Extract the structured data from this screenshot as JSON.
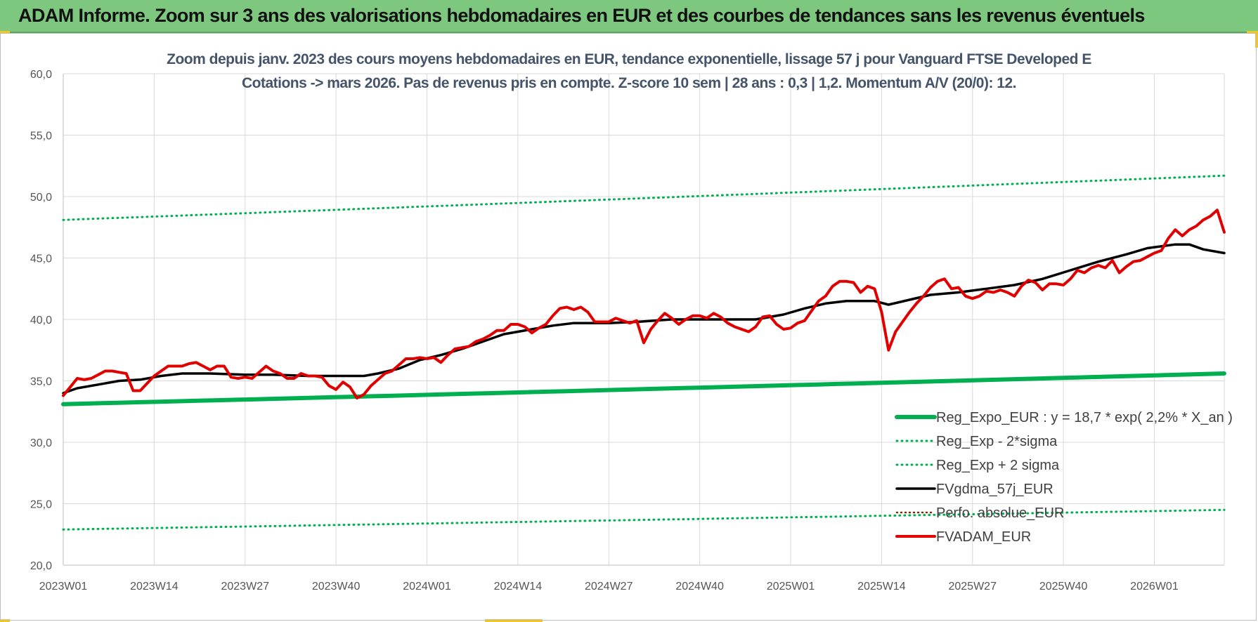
{
  "header": {
    "title": "ADAM Informe. Zoom sur 3 ans des valorisations hebdomadaires en EUR et des courbes de tendances sans les revenus éventuels"
  },
  "colors": {
    "banner": "#7dc77f",
    "accent": "#f2c81e",
    "reg_expo": "#00b050",
    "sigma": "#00b050",
    "gdma": "#000000",
    "perfo": "#7f2a00",
    "adam": "#e00000"
  },
  "chart_data": {
    "type": "line",
    "title": "Zoom depuis janv. 2023 des cours moyens hebdomadaires en EUR, tendance exponentielle, lissage 57 j pour Vanguard FTSE Developed E",
    "subtitle": "Cotations -> mars 2026. Pas de revenus pris en compte. Z-score 10 sem | 28 ans : 0,3 | 1,2. Momentum A/V (20/0): 12.",
    "xlabel": "",
    "ylabel": "",
    "ylim": [
      20,
      60
    ],
    "yticks": [
      "20,0",
      "25,0",
      "30,0",
      "35,0",
      "40,0",
      "45,0",
      "50,0",
      "55,0",
      "60,0"
    ],
    "x_tick_labels": [
      "2023W01",
      "2023W14",
      "2023W27",
      "2023W40",
      "2024W01",
      "2024W14",
      "2024W27",
      "2024W40",
      "2025W01",
      "2025W14",
      "2025W27",
      "2025W40",
      "2026W01"
    ],
    "x_start": "2023W01",
    "x_end": "2026W11",
    "grid": true,
    "legend_position": "bottom-right",
    "legend": [
      "Reg_Expo_EUR : y = 18,7 * exp( 2,2% *  X_an )",
      "Reg_Exp - 2*sigma",
      "Reg_Exp + 2 sigma",
      "FVgdma_57j_EUR",
      "Perfo. absolue_EUR",
      "FVADAM_EUR"
    ],
    "series": [
      {
        "name": "Reg_Expo_EUR : y = 18,7 * exp( 2,2% *  X_an )",
        "style": "solid-thick",
        "start": 33.1,
        "end": 35.6
      },
      {
        "name": "Reg_Exp - 2*sigma",
        "style": "dotted",
        "start": 22.9,
        "end": 24.5
      },
      {
        "name": "Reg_Exp + 2 sigma",
        "style": "dotted",
        "start": 48.1,
        "end": 51.7
      },
      {
        "name": "FVgdma_57j_EUR",
        "style": "solid",
        "points": [
          [
            "2023W01",
            34.0
          ],
          [
            "2023W03",
            34.4
          ],
          [
            "2023W06",
            34.7
          ],
          [
            "2023W09",
            35.0
          ],
          [
            "2023W12",
            35.1
          ],
          [
            "2023W15",
            35.4
          ],
          [
            "2023W18",
            35.6
          ],
          [
            "2023W22",
            35.6
          ],
          [
            "2023W27",
            35.5
          ],
          [
            "2023W31",
            35.5
          ],
          [
            "2023W36",
            35.4
          ],
          [
            "2023W40",
            35.4
          ],
          [
            "2023W44",
            35.4
          ],
          [
            "2023W46",
            35.6
          ],
          [
            "2023W49",
            36.0
          ],
          [
            "2023W52",
            36.7
          ],
          [
            "2024W03",
            37.1
          ],
          [
            "2024W06",
            37.6
          ],
          [
            "2024W09",
            38.2
          ],
          [
            "2024W12",
            38.8
          ],
          [
            "2024W16",
            39.2
          ],
          [
            "2024W19",
            39.5
          ],
          [
            "2024W22",
            39.7
          ],
          [
            "2024W27",
            39.7
          ],
          [
            "2024W31",
            39.8
          ],
          [
            "2024W36",
            40.0
          ],
          [
            "2024W40",
            40.0
          ],
          [
            "2024W44",
            40.0
          ],
          [
            "2024W48",
            40.0
          ],
          [
            "2024W52",
            40.4
          ],
          [
            "2025W03",
            40.9
          ],
          [
            "2025W06",
            41.3
          ],
          [
            "2025W09",
            41.5
          ],
          [
            "2025W13",
            41.5
          ],
          [
            "2025W15",
            41.2
          ],
          [
            "2025W18",
            41.6
          ],
          [
            "2025W21",
            42.0
          ],
          [
            "2025W25",
            42.2
          ],
          [
            "2025W29",
            42.5
          ],
          [
            "2025W33",
            42.8
          ],
          [
            "2025W37",
            43.3
          ],
          [
            "2025W41",
            44.0
          ],
          [
            "2025W45",
            44.7
          ],
          [
            "2025W49",
            45.3
          ],
          [
            "2025W52",
            45.8
          ],
          [
            "2026W04",
            46.1
          ],
          [
            "2026W06",
            46.1
          ],
          [
            "2026W08",
            45.7
          ],
          [
            "2026W11",
            45.4
          ]
        ]
      },
      {
        "name": "Perfo. absolue_EUR",
        "style": "dotted",
        "points": []
      },
      {
        "name": "FVADAM_EUR",
        "style": "solid-red",
        "points": [
          [
            "2023W01",
            33.8
          ],
          [
            "2023W02",
            34.5
          ],
          [
            "2023W03",
            35.2
          ],
          [
            "2023W04",
            35.1
          ],
          [
            "2023W05",
            35.2
          ],
          [
            "2023W06",
            35.5
          ],
          [
            "2023W07",
            35.8
          ],
          [
            "2023W08",
            35.8
          ],
          [
            "2023W09",
            35.7
          ],
          [
            "2023W10",
            35.6
          ],
          [
            "2023W11",
            34.2
          ],
          [
            "2023W12",
            34.2
          ],
          [
            "2023W13",
            34.8
          ],
          [
            "2023W14",
            35.4
          ],
          [
            "2023W15",
            35.8
          ],
          [
            "2023W16",
            36.2
          ],
          [
            "2023W17",
            36.2
          ],
          [
            "2023W18",
            36.2
          ],
          [
            "2023W19",
            36.4
          ],
          [
            "2023W20",
            36.5
          ],
          [
            "2023W21",
            36.2
          ],
          [
            "2023W22",
            35.9
          ],
          [
            "2023W23",
            36.2
          ],
          [
            "2023W24",
            36.2
          ],
          [
            "2023W25",
            35.3
          ],
          [
            "2023W26",
            35.2
          ],
          [
            "2023W27",
            35.3
          ],
          [
            "2023W28",
            35.2
          ],
          [
            "2023W29",
            35.7
          ],
          [
            "2023W30",
            36.2
          ],
          [
            "2023W31",
            35.8
          ],
          [
            "2023W32",
            35.6
          ],
          [
            "2023W33",
            35.2
          ],
          [
            "2023W34",
            35.2
          ],
          [
            "2023W35",
            35.6
          ],
          [
            "2023W36",
            35.4
          ],
          [
            "2023W37",
            35.4
          ],
          [
            "2023W38",
            35.3
          ],
          [
            "2023W39",
            34.6
          ],
          [
            "2023W40",
            34.3
          ],
          [
            "2023W41",
            34.9
          ],
          [
            "2023W42",
            34.5
          ],
          [
            "2023W43",
            33.6
          ],
          [
            "2023W44",
            33.9
          ],
          [
            "2023W45",
            34.6
          ],
          [
            "2023W46",
            35.1
          ],
          [
            "2023W47",
            35.6
          ],
          [
            "2023W48",
            35.8
          ],
          [
            "2023W49",
            36.3
          ],
          [
            "2023W50",
            36.8
          ],
          [
            "2023W51",
            36.8
          ],
          [
            "2023W52",
            36.9
          ],
          [
            "2024W01",
            36.8
          ],
          [
            "2024W02",
            36.9
          ],
          [
            "2024W03",
            36.5
          ],
          [
            "2024W04",
            37.1
          ],
          [
            "2024W05",
            37.6
          ],
          [
            "2024W06",
            37.7
          ],
          [
            "2024W07",
            37.8
          ],
          [
            "2024W08",
            38.2
          ],
          [
            "2024W09",
            38.4
          ],
          [
            "2024W10",
            38.7
          ],
          [
            "2024W11",
            39.1
          ],
          [
            "2024W12",
            39.1
          ],
          [
            "2024W13",
            39.6
          ],
          [
            "2024W14",
            39.6
          ],
          [
            "2024W15",
            39.4
          ],
          [
            "2024W16",
            38.9
          ],
          [
            "2024W17",
            39.3
          ],
          [
            "2024W18",
            39.6
          ],
          [
            "2024W19",
            40.3
          ],
          [
            "2024W20",
            40.9
          ],
          [
            "2024W21",
            41.0
          ],
          [
            "2024W22",
            40.8
          ],
          [
            "2024W23",
            41.0
          ],
          [
            "2024W24",
            40.6
          ],
          [
            "2024W25",
            39.8
          ],
          [
            "2024W26",
            39.8
          ],
          [
            "2024W27",
            39.8
          ],
          [
            "2024W28",
            40.1
          ],
          [
            "2024W29",
            39.9
          ],
          [
            "2024W30",
            39.7
          ],
          [
            "2024W31",
            39.9
          ],
          [
            "2024W32",
            38.1
          ],
          [
            "2024W33",
            39.2
          ],
          [
            "2024W34",
            39.9
          ],
          [
            "2024W35",
            40.5
          ],
          [
            "2024W36",
            40.1
          ],
          [
            "2024W37",
            39.6
          ],
          [
            "2024W38",
            40.0
          ],
          [
            "2024W39",
            40.3
          ],
          [
            "2024W40",
            40.3
          ],
          [
            "2024W41",
            40.1
          ],
          [
            "2024W42",
            40.5
          ],
          [
            "2024W43",
            40.2
          ],
          [
            "2024W44",
            39.7
          ],
          [
            "2024W45",
            39.4
          ],
          [
            "2024W46",
            39.2
          ],
          [
            "2024W47",
            39.0
          ],
          [
            "2024W48",
            39.4
          ],
          [
            "2024W49",
            40.2
          ],
          [
            "2024W50",
            40.3
          ],
          [
            "2024W51",
            39.6
          ],
          [
            "2024W52",
            39.2
          ],
          [
            "2025W01",
            39.3
          ],
          [
            "2025W02",
            39.7
          ],
          [
            "2025W03",
            39.9
          ],
          [
            "2025W04",
            40.7
          ],
          [
            "2025W05",
            41.5
          ],
          [
            "2025W06",
            41.9
          ],
          [
            "2025W07",
            42.7
          ],
          [
            "2025W08",
            43.1
          ],
          [
            "2025W09",
            43.1
          ],
          [
            "2025W10",
            43.0
          ],
          [
            "2025W11",
            42.2
          ],
          [
            "2025W12",
            42.7
          ],
          [
            "2025W13",
            42.5
          ],
          [
            "2025W14",
            40.6
          ],
          [
            "2025W15",
            37.5
          ],
          [
            "2025W16",
            39.0
          ],
          [
            "2025W17",
            39.8
          ],
          [
            "2025W18",
            40.6
          ],
          [
            "2025W19",
            41.3
          ],
          [
            "2025W20",
            41.9
          ],
          [
            "2025W21",
            42.6
          ],
          [
            "2025W22",
            43.1
          ],
          [
            "2025W23",
            43.3
          ],
          [
            "2025W24",
            42.5
          ],
          [
            "2025W25",
            42.6
          ],
          [
            "2025W26",
            41.9
          ],
          [
            "2025W27",
            41.7
          ],
          [
            "2025W28",
            41.9
          ],
          [
            "2025W29",
            42.3
          ],
          [
            "2025W30",
            42.2
          ],
          [
            "2025W31",
            42.4
          ],
          [
            "2025W32",
            42.2
          ],
          [
            "2025W33",
            41.9
          ],
          [
            "2025W34",
            42.7
          ],
          [
            "2025W35",
            43.2
          ],
          [
            "2025W36",
            43.0
          ],
          [
            "2025W37",
            42.4
          ],
          [
            "2025W38",
            42.9
          ],
          [
            "2025W39",
            42.9
          ],
          [
            "2025W40",
            42.8
          ],
          [
            "2025W41",
            43.3
          ],
          [
            "2025W42",
            44.0
          ],
          [
            "2025W43",
            43.8
          ],
          [
            "2025W44",
            44.2
          ],
          [
            "2025W45",
            44.4
          ],
          [
            "2025W46",
            44.2
          ],
          [
            "2025W47",
            44.8
          ],
          [
            "2025W48",
            43.8
          ],
          [
            "2025W49",
            44.3
          ],
          [
            "2025W50",
            44.7
          ],
          [
            "2025W51",
            44.8
          ],
          [
            "2025W52",
            45.1
          ],
          [
            "2026W01",
            45.4
          ],
          [
            "2026W02",
            45.6
          ],
          [
            "2026W03",
            46.6
          ],
          [
            "2026W04",
            47.3
          ],
          [
            "2026W05",
            46.8
          ],
          [
            "2026W06",
            47.3
          ],
          [
            "2026W07",
            47.6
          ],
          [
            "2026W08",
            48.1
          ],
          [
            "2026W09",
            48.4
          ],
          [
            "2026W10",
            48.9
          ],
          [
            "2026W11",
            47.1
          ]
        ]
      }
    ]
  }
}
